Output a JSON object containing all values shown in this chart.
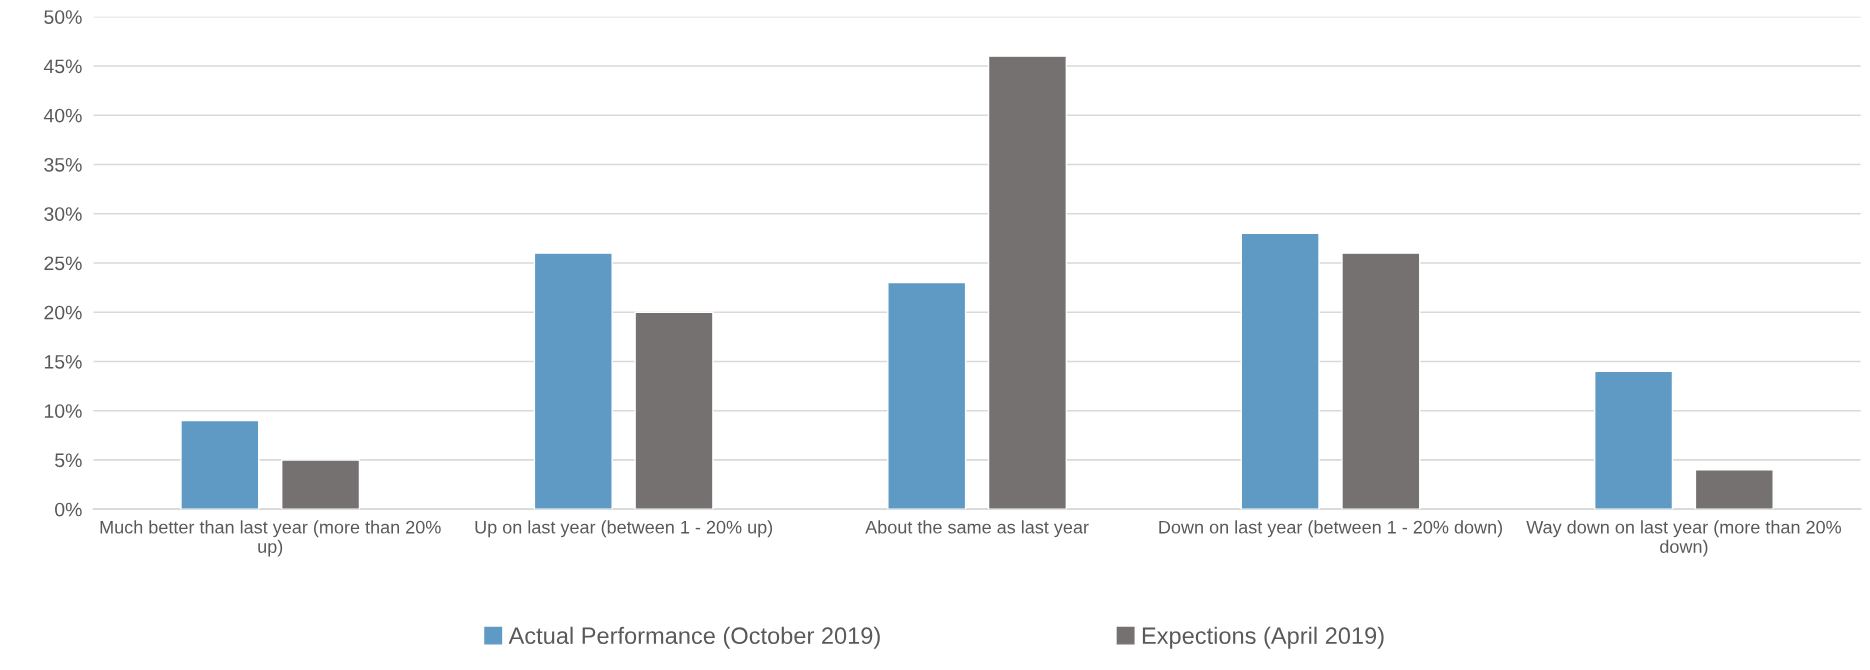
{
  "chart_data": {
    "type": "bar",
    "categories": [
      "Much better than last year (more than 20% up)",
      "Up on last year (between 1 - 20% up)",
      "About the same as last year",
      "Down on last year (between 1 - 20% down)",
      "Way down on last year (more than 20% down)"
    ],
    "series": [
      {
        "name": "Actual Performance (October 2019)",
        "color": "#5f9ac4",
        "values": [
          9,
          26,
          23,
          28,
          14
        ]
      },
      {
        "name": "Expections (April 2019)",
        "color": "#767171",
        "values": [
          5,
          20,
          46,
          26,
          4
        ]
      }
    ],
    "ylim": [
      0,
      50
    ],
    "yticks": [
      {
        "value": 0,
        "label": "0%"
      },
      {
        "value": 5,
        "label": "5%"
      },
      {
        "value": 10,
        "label": "10%"
      },
      {
        "value": 15,
        "label": "15%"
      },
      {
        "value": 20,
        "label": "20%"
      },
      {
        "value": 25,
        "label": "25%"
      },
      {
        "value": 30,
        "label": "30%"
      },
      {
        "value": 35,
        "label": "35%"
      },
      {
        "value": 40,
        "label": "40%"
      },
      {
        "value": 45,
        "label": "45%"
      },
      {
        "value": 50,
        "label": "50%"
      }
    ],
    "grid": "y",
    "legend": "bottom"
  }
}
